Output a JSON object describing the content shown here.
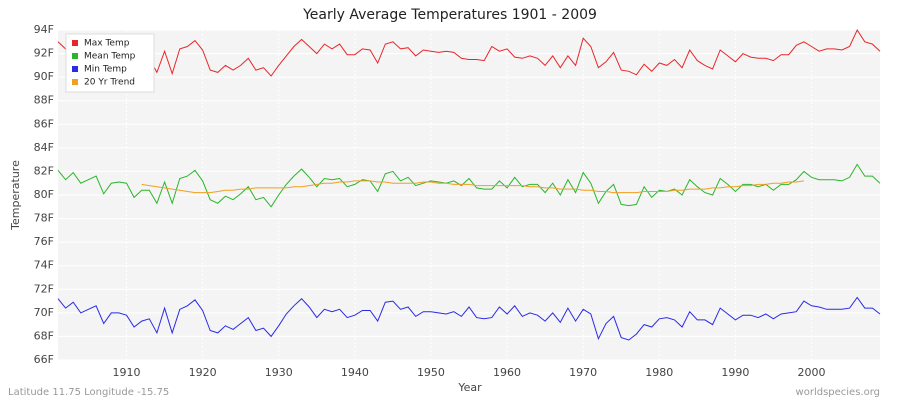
{
  "chart_data": {
    "type": "line",
    "title": "Yearly Average Temperatures 1901 - 2009",
    "x_label": "Year",
    "y_label": "Temperature",
    "footer_left": "Latitude 11.75 Longitude -15.75",
    "footer_right": "worldspecies.org",
    "legend": "top-left",
    "grid": true,
    "xlim": [
      1901,
      2009
    ],
    "ylim": [
      66,
      94
    ],
    "xticks": [
      1910,
      1920,
      1930,
      1940,
      1950,
      1960,
      1970,
      1980,
      1990,
      2000
    ],
    "yticks": [
      {
        "value": 66,
        "label": "66F"
      },
      {
        "value": 68,
        "label": "68F"
      },
      {
        "value": 70,
        "label": "70F"
      },
      {
        "value": 72,
        "label": "72F"
      },
      {
        "value": 74,
        "label": "74F"
      },
      {
        "value": 76,
        "label": "76F"
      },
      {
        "value": 78,
        "label": "78F"
      },
      {
        "value": 80,
        "label": "80F"
      },
      {
        "value": 82,
        "label": "82F"
      },
      {
        "value": 84,
        "label": "84F"
      },
      {
        "value": 86,
        "label": "86F"
      },
      {
        "value": 88,
        "label": "88F"
      },
      {
        "value": 90,
        "label": "90F"
      },
      {
        "value": 92,
        "label": "92F"
      },
      {
        "value": 94,
        "label": "94F"
      }
    ],
    "x": [
      1901,
      1902,
      1903,
      1904,
      1905,
      1906,
      1907,
      1908,
      1909,
      1910,
      1911,
      1912,
      1913,
      1914,
      1915,
      1916,
      1917,
      1918,
      1919,
      1920,
      1921,
      1922,
      1923,
      1924,
      1925,
      1926,
      1927,
      1928,
      1929,
      1930,
      1931,
      1932,
      1933,
      1934,
      1935,
      1936,
      1937,
      1938,
      1939,
      1940,
      1941,
      1942,
      1943,
      1944,
      1945,
      1946,
      1947,
      1948,
      1949,
      1950,
      1951,
      1952,
      1953,
      1954,
      1955,
      1956,
      1957,
      1958,
      1959,
      1960,
      1961,
      1962,
      1963,
      1964,
      1965,
      1966,
      1967,
      1968,
      1969,
      1970,
      1971,
      1972,
      1973,
      1974,
      1975,
      1976,
      1977,
      1978,
      1979,
      1980,
      1981,
      1982,
      1983,
      1984,
      1985,
      1986,
      1987,
      1988,
      1989,
      1990,
      1991,
      1992,
      1993,
      1994,
      1995,
      1996,
      1997,
      1998,
      1999,
      2000,
      2001,
      2002,
      2003,
      2004,
      2005,
      2006,
      2007,
      2008,
      2009
    ],
    "series": [
      {
        "name": "Max Temp",
        "color": "#e8262a",
        "values": [
          93.0,
          92.4,
          92.6,
          91.8,
          92.2,
          92.6,
          91.2,
          92.0,
          91.8,
          92.3,
          91.5,
          91.8,
          91.6,
          90.4,
          92.2,
          90.3,
          92.4,
          92.6,
          93.1,
          92.3,
          90.6,
          90.4,
          91.0,
          90.6,
          91.0,
          91.6,
          90.6,
          90.8,
          90.1,
          91.0,
          91.8,
          92.6,
          93.2,
          92.6,
          92.0,
          92.8,
          92.4,
          92.8,
          91.9,
          91.9,
          92.4,
          92.3,
          91.2,
          92.8,
          93.0,
          92.4,
          92.5,
          91.8,
          92.3,
          92.2,
          92.1,
          92.2,
          92.1,
          91.6,
          91.5,
          91.5,
          91.4,
          92.6,
          92.2,
          92.4,
          91.7,
          91.6,
          91.8,
          91.6,
          91.0,
          91.8,
          90.8,
          91.8,
          91.0,
          93.3,
          92.6,
          90.8,
          91.3,
          92.1,
          90.6,
          90.5,
          90.2,
          91.1,
          90.5,
          91.2,
          91.0,
          91.5,
          90.8,
          92.3,
          91.4,
          91.0,
          90.7,
          92.3,
          91.8,
          91.3,
          92.0,
          91.7,
          91.6,
          91.6,
          91.4,
          91.9,
          91.9,
          92.7,
          93.0,
          92.6,
          92.2,
          92.4,
          92.4,
          92.3,
          92.6,
          94.0,
          93.0,
          92.8,
          92.2
        ]
      },
      {
        "name": "Mean Temp",
        "color": "#2ab52a",
        "values": [
          82.1,
          81.3,
          81.9,
          81.0,
          81.3,
          81.6,
          80.1,
          81.0,
          81.1,
          81.0,
          79.8,
          80.4,
          80.4,
          79.3,
          81.1,
          79.3,
          81.4,
          81.6,
          82.1,
          81.2,
          79.6,
          79.3,
          79.9,
          79.6,
          80.1,
          80.7,
          79.6,
          79.8,
          79.0,
          80.0,
          80.9,
          81.6,
          82.2,
          81.5,
          80.7,
          81.4,
          81.3,
          81.4,
          80.7,
          80.9,
          81.3,
          81.2,
          80.3,
          81.8,
          82.0,
          81.2,
          81.5,
          80.8,
          81.0,
          81.2,
          81.1,
          81.0,
          81.2,
          80.8,
          81.4,
          80.6,
          80.5,
          80.5,
          81.2,
          80.6,
          81.5,
          80.7,
          80.9,
          80.9,
          80.2,
          81.0,
          80.0,
          81.3,
          80.2,
          81.9,
          81.0,
          79.3,
          80.3,
          80.9,
          79.2,
          79.1,
          79.2,
          80.7,
          79.8,
          80.4,
          80.3,
          80.5,
          80.0,
          81.3,
          80.7,
          80.2,
          80.0,
          81.4,
          80.9,
          80.3,
          80.9,
          80.9,
          80.7,
          80.9,
          80.4,
          80.9,
          80.9,
          81.3,
          82.0,
          81.5,
          81.3,
          81.3,
          81.3,
          81.2,
          81.5,
          82.6,
          81.6,
          81.6,
          81.0
        ]
      },
      {
        "name": "Min Temp",
        "color": "#2a2ae8",
        "values": [
          71.2,
          70.4,
          70.9,
          70.0,
          70.3,
          70.6,
          69.1,
          70.0,
          70.0,
          69.8,
          68.8,
          69.3,
          69.5,
          68.3,
          70.4,
          68.3,
          70.3,
          70.6,
          71.1,
          70.2,
          68.5,
          68.3,
          68.9,
          68.6,
          69.1,
          69.6,
          68.5,
          68.7,
          68.0,
          68.9,
          69.9,
          70.6,
          71.2,
          70.5,
          69.6,
          70.3,
          70.1,
          70.3,
          69.6,
          69.8,
          70.2,
          70.2,
          69.3,
          70.9,
          71.0,
          70.3,
          70.5,
          69.7,
          70.1,
          70.1,
          70.0,
          69.9,
          70.1,
          69.7,
          70.5,
          69.6,
          69.5,
          69.6,
          70.5,
          69.9,
          70.6,
          69.7,
          70.0,
          69.8,
          69.3,
          70.0,
          69.2,
          70.4,
          69.3,
          70.3,
          69.9,
          67.8,
          69.1,
          69.7,
          67.9,
          67.7,
          68.2,
          69.0,
          68.8,
          69.5,
          69.6,
          69.4,
          68.8,
          70.1,
          69.4,
          69.4,
          69.0,
          70.4,
          69.9,
          69.4,
          69.8,
          69.8,
          69.6,
          69.9,
          69.5,
          69.9,
          70.0,
          70.1,
          71.0,
          70.6,
          70.5,
          70.3,
          70.3,
          70.3,
          70.4,
          71.3,
          70.4,
          70.4,
          69.9
        ]
      },
      {
        "name": "20 Yr Trend",
        "color": "#f0a020",
        "values": [
          null,
          null,
          null,
          null,
          null,
          null,
          null,
          null,
          null,
          null,
          null,
          80.9,
          80.8,
          80.7,
          80.6,
          80.5,
          80.4,
          80.3,
          80.2,
          80.2,
          80.2,
          80.3,
          80.4,
          80.4,
          80.5,
          80.5,
          80.6,
          80.6,
          80.6,
          80.6,
          80.6,
          80.7,
          80.7,
          80.8,
          80.9,
          81.0,
          81.0,
          81.1,
          81.1,
          81.2,
          81.2,
          81.2,
          81.1,
          81.1,
          81.0,
          81.0,
          81.0,
          81.0,
          81.1,
          81.1,
          81.0,
          81.0,
          80.9,
          80.9,
          80.9,
          80.8,
          80.8,
          80.8,
          80.8,
          80.8,
          80.8,
          80.8,
          80.7,
          80.7,
          80.6,
          80.6,
          80.5,
          80.5,
          80.5,
          80.4,
          80.4,
          80.3,
          80.3,
          80.2,
          80.2,
          80.2,
          80.2,
          80.3,
          80.3,
          80.3,
          80.3,
          80.4,
          80.4,
          80.5,
          80.5,
          80.5,
          80.6,
          80.6,
          80.7,
          80.7,
          80.8,
          80.8,
          80.9,
          80.9,
          81.0,
          81.0,
          81.1,
          81.1,
          81.2,
          null,
          null,
          null,
          null,
          null,
          null,
          null,
          null,
          null,
          null
        ]
      }
    ]
  }
}
